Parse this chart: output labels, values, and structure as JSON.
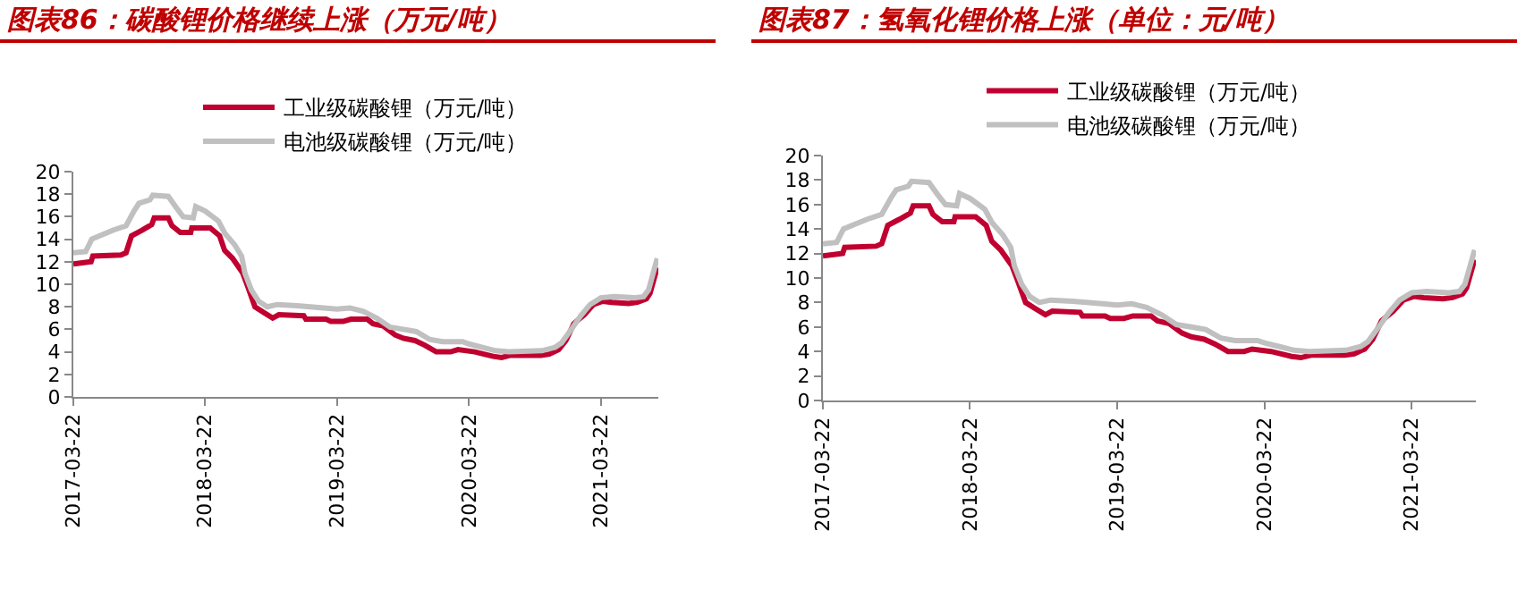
{
  "chart_data": [
    {
      "type": "line",
      "title": "图表86：碳酸锂价格继续上涨（万元/吨）",
      "x": [
        "2017-03-22",
        "2017-05-10",
        "2017-05-15",
        "2017-08-01",
        "2017-08-15",
        "2017-08-30",
        "2017-09-28",
        "2017-10-25",
        "2017-11-01",
        "2017-12-10",
        "2017-12-20",
        "2018-01-12",
        "2018-02-10",
        "2018-02-13",
        "2018-04-05",
        "2018-05-01",
        "2018-05-15",
        "2018-06-06",
        "2018-07-04",
        "2018-07-18",
        "2018-08-07",
        "2018-08-31",
        "2018-09-25",
        "2018-10-12",
        "2018-12-20",
        "2018-12-26",
        "2019-02-20",
        "2019-03-05",
        "2019-04-08",
        "2019-04-30",
        "2019-06-14",
        "2019-06-30",
        "2019-07-28",
        "2019-08-30",
        "2019-09-22",
        "2019-10-24",
        "2019-11-20",
        "2019-12-22",
        "2020-01-31",
        "2020-02-20",
        "2020-04-07",
        "2020-05-02",
        "2020-05-28",
        "2020-06-20",
        "2020-07-15",
        "2020-10-07",
        "2020-10-30",
        "2020-11-25",
        "2020-12-15",
        "2021-01-06",
        "2021-02-04",
        "2021-03-01",
        "2021-03-27",
        "2021-04-21",
        "2021-06-07",
        "2021-07-01",
        "2021-07-26",
        "2021-08-05",
        "2021-08-25"
      ],
      "xlim": [
        "2017-03-22",
        "2021-08-28"
      ],
      "xticks": [
        "2017-03-22",
        "2018-03-22",
        "2019-03-22",
        "2020-03-22",
        "2021-03-22"
      ],
      "ylim": [
        0,
        20
      ],
      "yticks": [
        0,
        2,
        4,
        6,
        8,
        10,
        12,
        14,
        16,
        18,
        20
      ],
      "legend": "top",
      "grid": false,
      "marker": "none",
      "line_style": "solid",
      "series": [
        {
          "name": "工业级碳酸锂（万元/吨）",
          "color": "#c00030",
          "values": [
            11.8,
            12.0,
            12.5,
            12.6,
            12.8,
            14.3,
            14.8,
            15.3,
            15.9,
            15.9,
            15.2,
            14.6,
            14.6,
            15.0,
            15.0,
            14.3,
            13.0,
            12.3,
            11.0,
            9.8,
            8.0,
            7.5,
            7.0,
            7.3,
            7.2,
            6.9,
            6.9,
            6.7,
            6.7,
            6.9,
            6.9,
            6.5,
            6.3,
            5.5,
            5.2,
            5.0,
            4.6,
            4.0,
            4.0,
            4.2,
            4.0,
            3.8,
            3.6,
            3.5,
            3.7,
            3.7,
            3.8,
            4.2,
            5.0,
            6.5,
            7.3,
            8.2,
            8.5,
            8.4,
            8.3,
            8.4,
            8.7,
            9.2,
            11.5
          ]
        },
        {
          "name": "电池级碳酸锂（万元/吨）",
          "color": "#c0c0c0",
          "x": [
            "2017-03-22",
            "2017-04-25",
            "2017-05-12",
            "2017-06-03",
            "2017-07-10",
            "2017-08-15",
            "2017-09-06",
            "2017-09-20",
            "2017-10-20",
            "2017-10-28",
            "2017-12-10",
            "2018-01-01",
            "2018-01-20",
            "2018-02-17",
            "2018-02-24",
            "2018-03-22",
            "2018-04-20",
            "2018-04-28",
            "2018-05-16",
            "2018-06-12",
            "2018-07-01",
            "2018-07-10",
            "2018-07-28",
            "2018-08-17",
            "2018-09-10",
            "2018-10-08",
            "2018-12-02",
            "2019-02-13",
            "2019-03-22",
            "2019-04-27",
            "2019-06-03",
            "2019-07-10",
            "2019-08-16",
            "2019-09-22",
            "2019-10-28",
            "2019-12-04",
            "2020-01-09",
            "2020-03-04",
            "2020-03-22",
            "2020-04-28",
            "2020-06-03",
            "2020-07-10",
            "2020-10-10",
            "2020-11-15",
            "2020-12-03",
            "2020-12-30",
            "2021-01-25",
            "2021-02-20",
            "2021-03-22",
            "2021-04-28",
            "2021-06-22",
            "2021-07-18",
            "2021-08-01",
            "2021-08-25"
          ],
          "values": [
            12.8,
            12.9,
            14.0,
            14.3,
            14.8,
            15.2,
            16.5,
            17.2,
            17.5,
            17.9,
            17.8,
            16.8,
            16.0,
            15.9,
            16.9,
            16.5,
            15.8,
            15.6,
            14.5,
            13.5,
            12.5,
            11.0,
            9.5,
            8.5,
            8.0,
            8.2,
            8.1,
            7.9,
            7.8,
            7.9,
            7.6,
            7.0,
            6.2,
            6.0,
            5.8,
            5.1,
            4.9,
            4.9,
            4.7,
            4.4,
            4.1,
            4.0,
            4.1,
            4.4,
            4.8,
            6.0,
            7.2,
            8.2,
            8.8,
            8.9,
            8.8,
            8.9,
            9.5,
            12.3
          ]
        }
      ]
    },
    {
      "type": "line",
      "title": "图表87：氢氧化锂价格上涨（单位：元/吨）",
      "x": [
        "2017-03-22",
        "2017-05-10",
        "2017-05-15",
        "2017-08-01",
        "2017-08-15",
        "2017-08-30",
        "2017-09-28",
        "2017-10-25",
        "2017-11-01",
        "2017-12-10",
        "2017-12-20",
        "2018-01-12",
        "2018-02-10",
        "2018-02-13",
        "2018-04-05",
        "2018-05-01",
        "2018-05-15",
        "2018-06-06",
        "2018-07-04",
        "2018-07-18",
        "2018-08-07",
        "2018-08-31",
        "2018-09-25",
        "2018-10-12",
        "2018-12-20",
        "2018-12-26",
        "2019-02-20",
        "2019-03-05",
        "2019-04-08",
        "2019-04-30",
        "2019-06-14",
        "2019-06-30",
        "2019-07-28",
        "2019-08-30",
        "2019-09-22",
        "2019-10-24",
        "2019-11-20",
        "2019-12-22",
        "2020-01-31",
        "2020-02-20",
        "2020-04-07",
        "2020-05-02",
        "2020-05-28",
        "2020-06-20",
        "2020-07-15",
        "2020-10-07",
        "2020-10-30",
        "2020-11-25",
        "2020-12-15",
        "2021-01-06",
        "2021-02-04",
        "2021-03-01",
        "2021-03-27",
        "2021-04-21",
        "2021-06-07",
        "2021-07-01",
        "2021-07-26",
        "2021-08-05",
        "2021-08-25"
      ],
      "xlim": [
        "2017-03-22",
        "2021-08-28"
      ],
      "xticks": [
        "2017-03-22",
        "2018-03-22",
        "2019-03-22",
        "2020-03-22",
        "2021-03-22"
      ],
      "ylim": [
        0,
        20
      ],
      "yticks": [
        0,
        2,
        4,
        6,
        8,
        10,
        12,
        14,
        16,
        18,
        20
      ],
      "legend": "top",
      "grid": false,
      "marker": "none",
      "line_style": "solid",
      "series": [
        {
          "name": "工业级碳酸锂（万元/吨）",
          "color": "#c00030",
          "values": [
            11.8,
            12.0,
            12.5,
            12.6,
            12.8,
            14.3,
            14.8,
            15.3,
            15.9,
            15.9,
            15.2,
            14.6,
            14.6,
            15.0,
            15.0,
            14.3,
            13.0,
            12.3,
            11.0,
            9.8,
            8.0,
            7.5,
            7.0,
            7.3,
            7.2,
            6.9,
            6.9,
            6.7,
            6.7,
            6.9,
            6.9,
            6.5,
            6.3,
            5.5,
            5.2,
            5.0,
            4.6,
            4.0,
            4.0,
            4.2,
            4.0,
            3.8,
            3.6,
            3.5,
            3.7,
            3.7,
            3.8,
            4.2,
            5.0,
            6.5,
            7.3,
            8.2,
            8.5,
            8.4,
            8.3,
            8.4,
            8.7,
            9.2,
            11.5
          ]
        },
        {
          "name": "电池级碳酸锂（万元/吨）",
          "color": "#c0c0c0",
          "x": [
            "2017-03-22",
            "2017-04-25",
            "2017-05-12",
            "2017-06-03",
            "2017-07-10",
            "2017-08-15",
            "2017-09-06",
            "2017-09-20",
            "2017-10-20",
            "2017-10-28",
            "2017-12-10",
            "2018-01-01",
            "2018-01-20",
            "2018-02-17",
            "2018-02-24",
            "2018-03-22",
            "2018-04-20",
            "2018-04-28",
            "2018-05-16",
            "2018-06-12",
            "2018-07-01",
            "2018-07-10",
            "2018-07-28",
            "2018-08-17",
            "2018-09-10",
            "2018-10-08",
            "2018-12-02",
            "2019-02-13",
            "2019-03-22",
            "2019-04-27",
            "2019-06-03",
            "2019-07-10",
            "2019-08-16",
            "2019-09-22",
            "2019-10-28",
            "2019-12-04",
            "2020-01-09",
            "2020-03-04",
            "2020-03-22",
            "2020-04-28",
            "2020-06-03",
            "2020-07-10",
            "2020-10-10",
            "2020-11-15",
            "2020-12-03",
            "2020-12-30",
            "2021-01-25",
            "2021-02-20",
            "2021-03-22",
            "2021-04-28",
            "2021-06-22",
            "2021-07-18",
            "2021-08-01",
            "2021-08-25"
          ],
          "values": [
            12.8,
            12.9,
            14.0,
            14.3,
            14.8,
            15.2,
            16.5,
            17.2,
            17.5,
            17.9,
            17.8,
            16.8,
            16.0,
            15.9,
            16.9,
            16.5,
            15.8,
            15.6,
            14.5,
            13.5,
            12.5,
            11.0,
            9.5,
            8.5,
            8.0,
            8.2,
            8.1,
            7.9,
            7.8,
            7.9,
            7.6,
            7.0,
            6.2,
            6.0,
            5.8,
            5.1,
            4.9,
            4.9,
            4.7,
            4.4,
            4.1,
            4.0,
            4.1,
            4.4,
            4.8,
            6.0,
            7.2,
            8.2,
            8.8,
            8.9,
            8.8,
            8.9,
            9.5,
            12.3
          ]
        }
      ]
    }
  ]
}
